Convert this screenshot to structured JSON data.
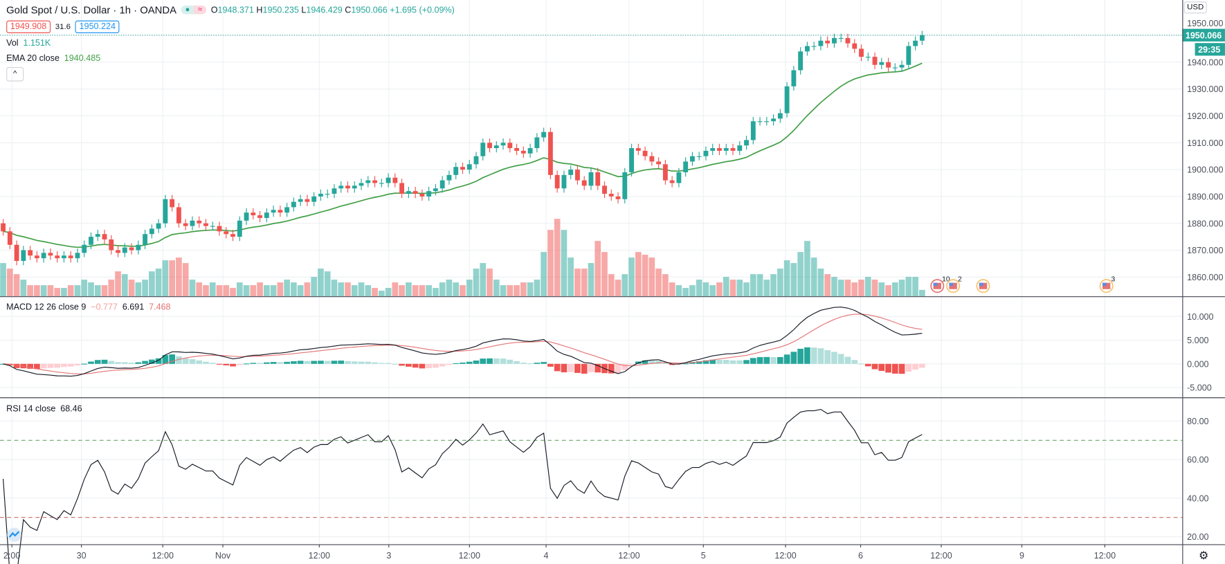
{
  "header": {
    "symbol": "Gold Spot / U.S. Dollar · 1h · OANDA",
    "status_icons": [
      "market-open-dot",
      "delayed-approx-icon"
    ],
    "ohlc": {
      "o_label": "O",
      "o": "1948.371",
      "h_label": "H",
      "h": "1950.235",
      "l_label": "L",
      "l": "1946.429",
      "c_label": "C",
      "c": "1950.066",
      "change": "+1.695 (+0.09%)"
    },
    "sell": "1949.908",
    "spread": "31.6",
    "buy": "1950.224"
  },
  "indicators": {
    "vol_label": "Vol",
    "vol_value": "1.151K",
    "ema_label": "EMA 20 close",
    "ema_value": "1940.485",
    "macd_label": "MACD 12 26 close 9",
    "macd_hist": "−0.777",
    "macd_line": "6.691",
    "macd_signal": "7.468",
    "rsi_label": "RSI 14 close",
    "rsi_value": "68.46"
  },
  "price_axis": {
    "currency": "USD",
    "last_price": "1950.066",
    "countdown": "29:35",
    "ticks": [
      "1950.000",
      "1940.000",
      "1930.000",
      "1920.000",
      "1910.000",
      "1900.000",
      "1890.000",
      "1880.000",
      "1870.000",
      "1860.000"
    ]
  },
  "macd_axis": {
    "ticks": [
      "10.000",
      "5.000",
      "0.000",
      "-5.000"
    ]
  },
  "rsi_axis": {
    "ticks": [
      "80.00",
      "60.00",
      "40.00",
      "20.00"
    ],
    "upper_band": 70,
    "lower_band": 30
  },
  "time_axis": [
    "2:00",
    "30",
    "12:00",
    "Nov",
    "12:00",
    "3",
    "12:00",
    "4",
    "12:00",
    "5",
    "12:00",
    "6",
    "12:00",
    "9",
    "12:00"
  ],
  "events": [
    {
      "count": "10"
    },
    {
      "count": "2"
    },
    {
      "count": ""
    },
    {
      "count": "3"
    }
  ],
  "colors": {
    "up": "#26a69a",
    "down": "#ef5350",
    "ema": "#43a047",
    "macd": "#131722",
    "signal": "#e57373",
    "rsi": "#131722"
  },
  "chart_data": {
    "type": "candlestick",
    "interval": "1h",
    "closes": [
      1877,
      1872,
      1866,
      1870,
      1868,
      1867,
      1869,
      1868,
      1867,
      1868,
      1867,
      1869,
      1872,
      1875,
      1876,
      1874,
      1870,
      1869,
      1871,
      1870,
      1872,
      1876,
      1878,
      1880,
      1889,
      1886,
      1880,
      1879,
      1881,
      1880,
      1879,
      1879,
      1877,
      1876,
      1875,
      1881,
      1884,
      1883,
      1882,
      1884,
      1885,
      1884,
      1886,
      1888,
      1889,
      1888,
      1890,
      1891,
      1891,
      1893,
      1894,
      1893,
      1894,
      1895,
      1896,
      1895,
      1895,
      1897,
      1895,
      1891,
      1892,
      1891,
      1890,
      1892,
      1893,
      1896,
      1898,
      1901,
      1900,
      1902,
      1905,
      1910,
      1908,
      1909,
      1910,
      1908,
      1907,
      1906,
      1908,
      1912,
      1914,
      1898,
      1893,
      1898,
      1900,
      1896,
      1894,
      1899,
      1894,
      1891,
      1890,
      1889,
      1899,
      1908,
      1907,
      1905,
      1903,
      1902,
      1896,
      1895,
      1899,
      1903,
      1905,
      1905,
      1907,
      1908,
      1907,
      1908,
      1907,
      1909,
      1911,
      1918,
      1918,
      1918,
      1919,
      1921,
      1931,
      1937,
      1944,
      1946,
      1946,
      1948,
      1947,
      1949,
      1949,
      1947,
      1945,
      1942,
      1942,
      1939,
      1940,
      1938,
      1938,
      1939,
      1946,
      1948,
      1950.066
    ],
    "volumes_k": [
      6,
      5,
      4,
      3,
      2,
      2,
      2,
      2,
      1.5,
      1.5,
      2,
      2,
      3,
      2.5,
      2,
      2,
      3,
      4.5,
      4,
      3,
      2.5,
      3,
      4.5,
      5,
      6.5,
      6.5,
      7,
      6,
      3,
      2.5,
      2,
      2.5,
      2,
      2,
      1.5,
      2.5,
      2,
      2,
      2.5,
      2,
      2,
      2.5,
      3,
      2.5,
      2,
      2.5,
      3.5,
      5,
      4.5,
      3,
      2.5,
      2.5,
      2,
      2.5,
      2,
      1.5,
      1,
      1.5,
      2.5,
      2,
      2.5,
      2,
      2,
      2,
      1.5,
      2.5,
      3,
      2.5,
      2,
      3,
      5,
      6,
      5,
      3,
      2,
      2,
      2,
      2.5,
      2.5,
      3,
      8,
      12,
      14,
      12,
      7,
      5,
      5,
      6,
      10,
      8,
      4,
      3,
      4,
      7,
      8,
      7.5,
      7,
      5,
      4,
      2.5,
      2,
      1.5,
      2,
      3,
      2.5,
      2,
      2.5,
      3.5,
      3,
      3,
      2.5,
      4,
      4,
      3,
      4,
      5,
      6.5,
      6,
      8,
      10,
      7,
      5,
      4,
      3.5,
      3,
      3,
      2.5,
      3,
      3.5,
      3,
      2.5,
      2,
      2.5,
      3,
      3.5,
      3.5,
      1.151
    ],
    "price_range": [
      1852,
      1955
    ],
    "macd_range": [
      -7,
      13
    ],
    "rsi_range": [
      15,
      95
    ],
    "grid": true
  }
}
